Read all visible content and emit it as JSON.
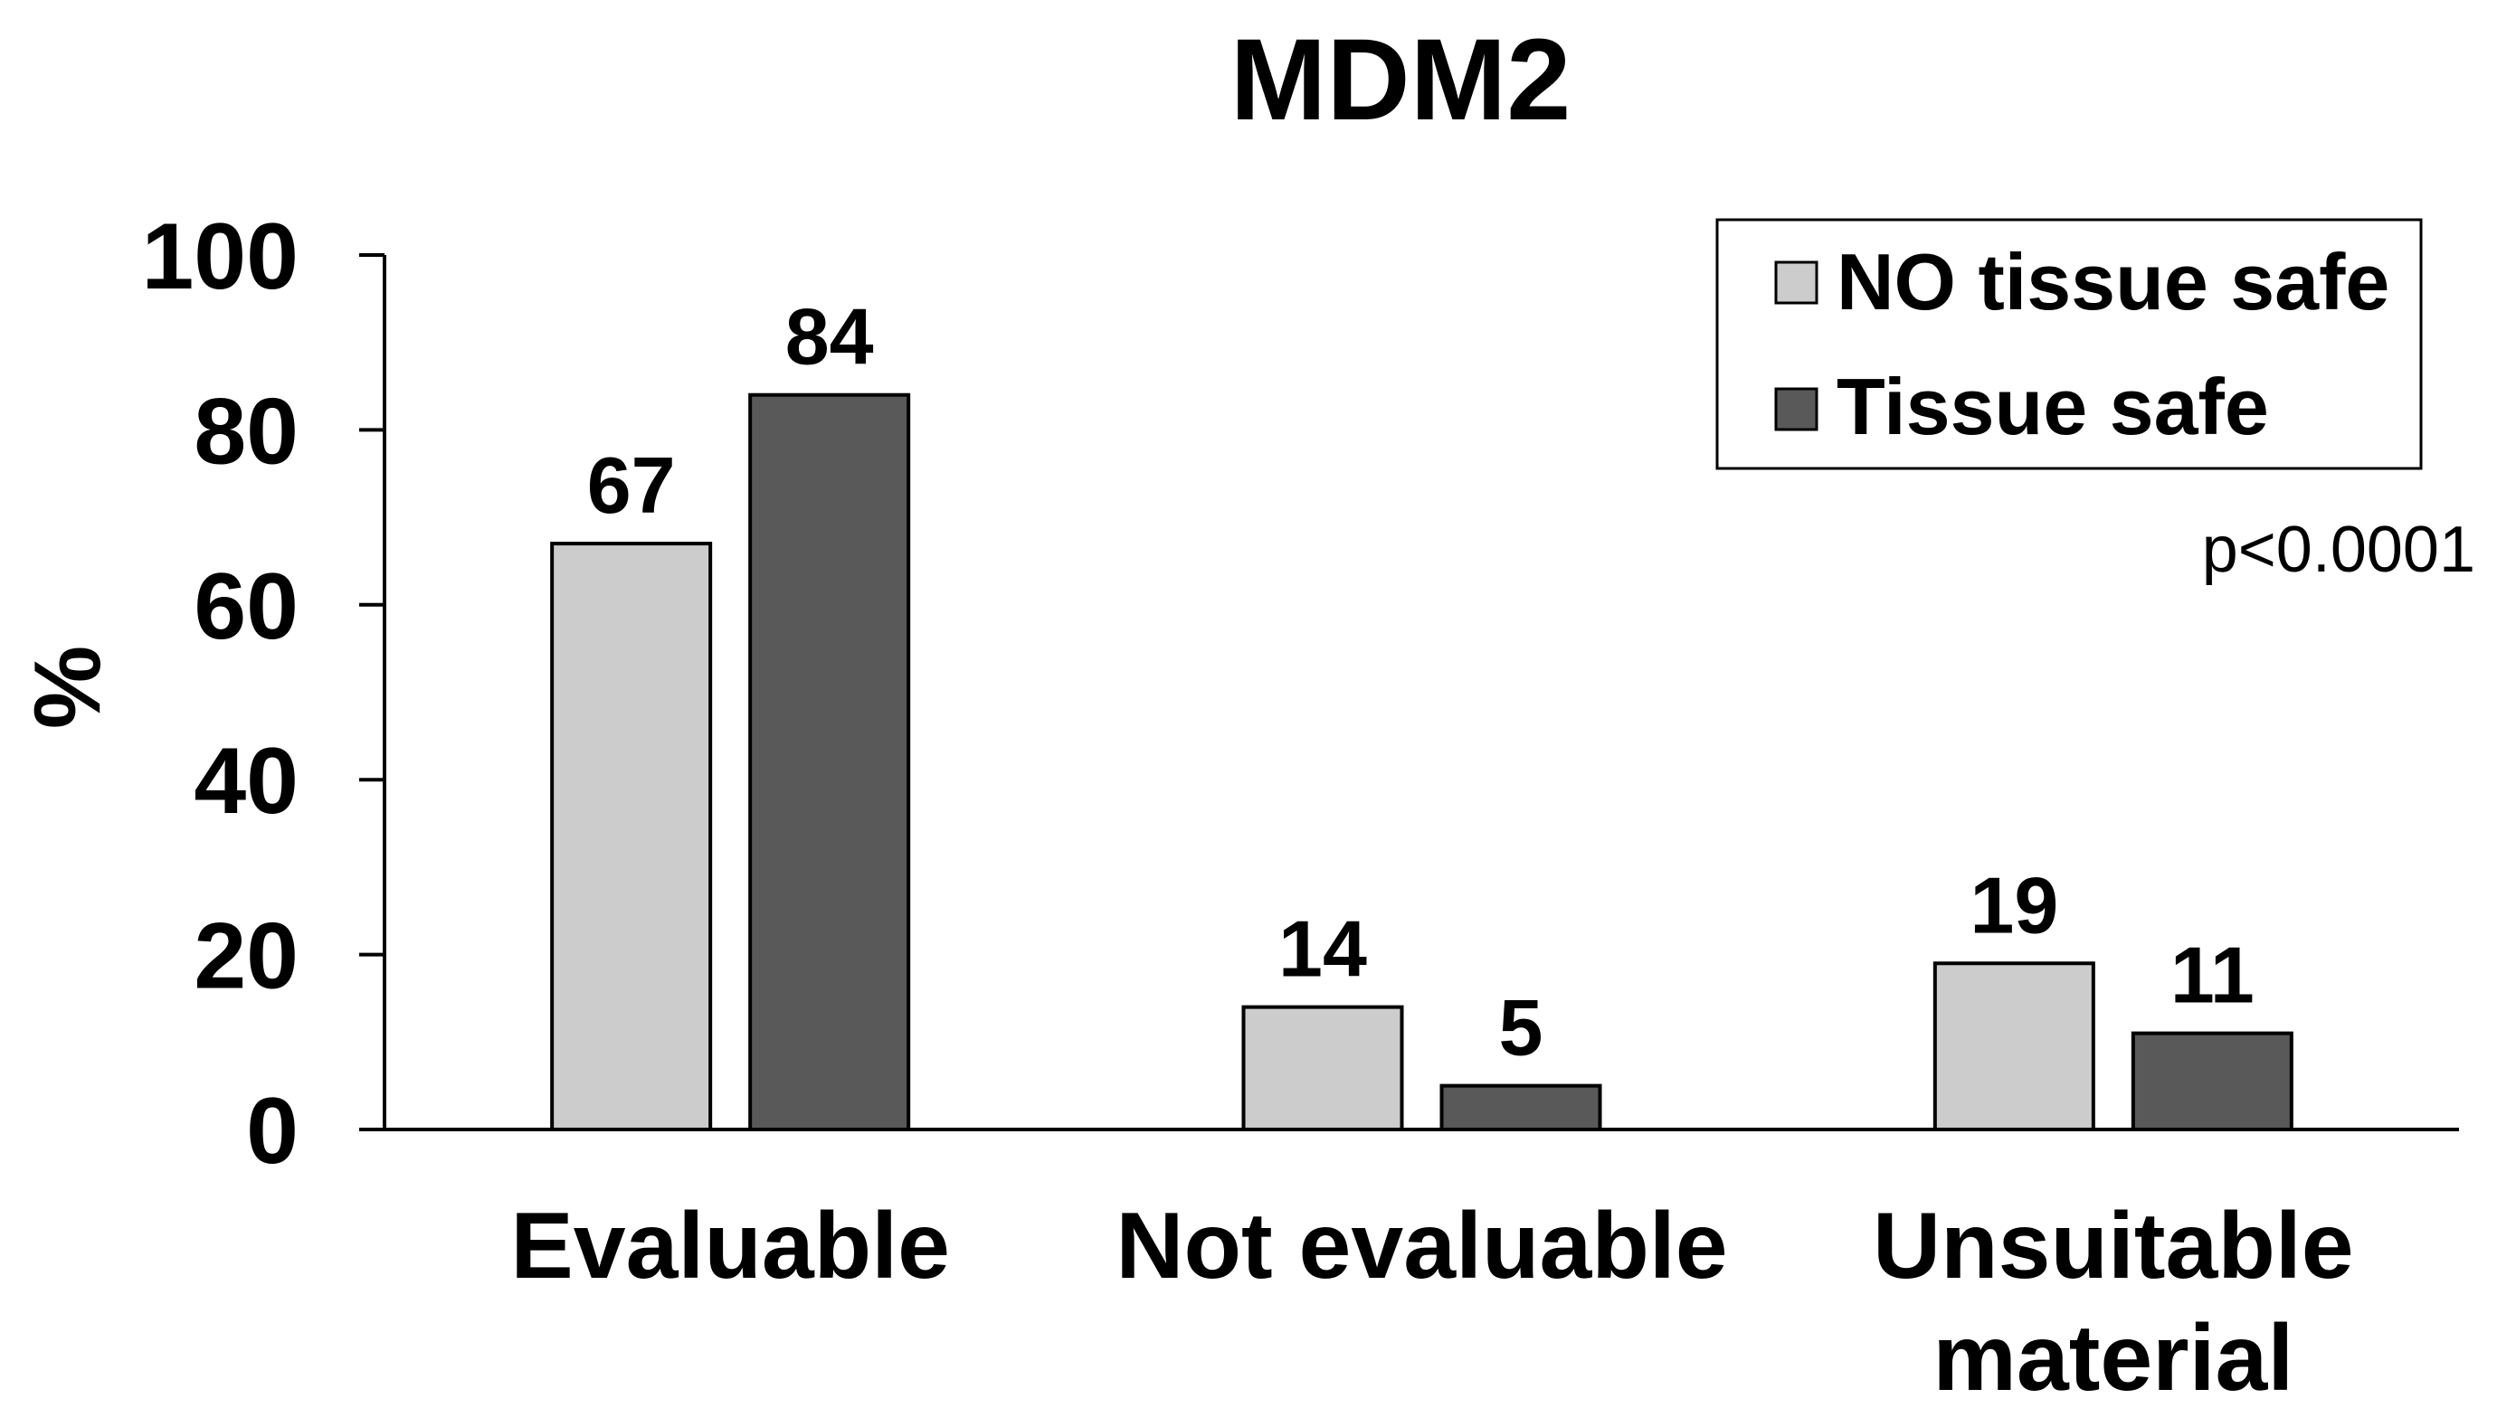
{
  "chart_data": {
    "type": "bar",
    "title": "MDM2",
    "xlabel": "",
    "ylabel": "%",
    "ylim": [
      0,
      100
    ],
    "yticks": [
      0,
      20,
      40,
      60,
      80,
      100
    ],
    "categories": [
      [
        "Evaluable"
      ],
      [
        "Not evaluable"
      ],
      [
        "Unsuitable",
        "material"
      ]
    ],
    "series": [
      {
        "name": "NO tissue safe",
        "values": [
          67,
          14,
          19
        ],
        "color": "#cccccc"
      },
      {
        "name": "Tissue safe",
        "values": [
          84,
          5,
          11
        ],
        "color": "#595959"
      }
    ],
    "annotation": "p<0.0001",
    "legend_position": "top-right",
    "grid": false
  }
}
